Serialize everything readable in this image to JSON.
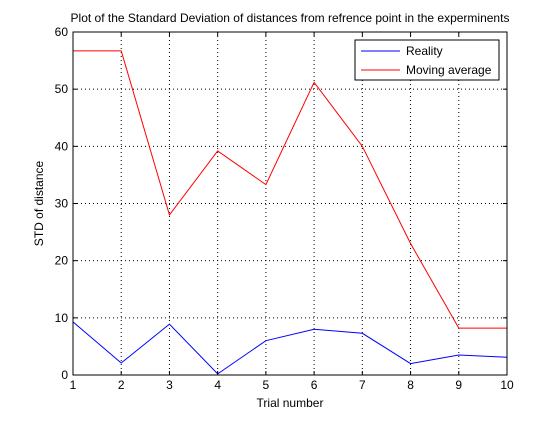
{
  "chart_data": {
    "type": "line",
    "title": "Plot of the Standard Deviation of distances from refrence point in the experminents",
    "xlabel": "Trial number",
    "ylabel": "STD of distance",
    "xlim": [
      1,
      10
    ],
    "ylim": [
      0,
      60
    ],
    "x": [
      1,
      2,
      3,
      4,
      5,
      6,
      7,
      8,
      9,
      10
    ],
    "x_ticks": [
      1,
      2,
      3,
      4,
      5,
      6,
      7,
      8,
      9,
      10
    ],
    "y_ticks": [
      0,
      10,
      20,
      30,
      40,
      50,
      60
    ],
    "grid": "on (dotted)",
    "legend_position": "top-right",
    "series": [
      {
        "name": "Reality",
        "color": "#0000ff",
        "values": [
          9.3,
          2.1,
          8.9,
          0.2,
          6.0,
          8.0,
          7.3,
          2.0,
          3.5,
          3.1
        ]
      },
      {
        "name": "Moving average",
        "color": "#ff0000",
        "values": [
          56.7,
          56.7,
          28.0,
          39.2,
          33.3,
          51.2,
          40.0,
          23.0,
          8.2,
          8.2
        ]
      }
    ]
  }
}
